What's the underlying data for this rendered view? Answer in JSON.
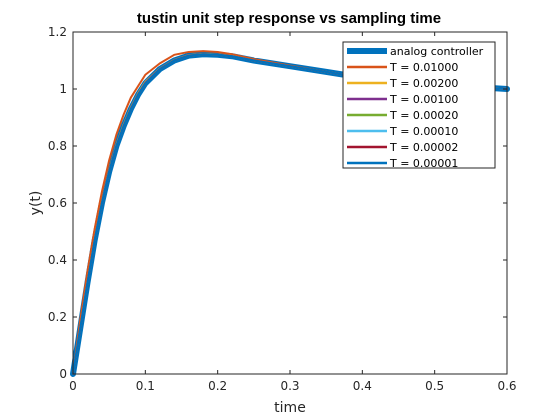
{
  "chart_data": {
    "type": "line",
    "title": "tustin unit step response vs sampling time",
    "xlabel": "time",
    "ylabel": "y(t)",
    "xlim": [
      0,
      0.6
    ],
    "ylim": [
      0,
      1.2
    ],
    "xticks": [
      "0",
      "0.1",
      "0.2",
      "0.3",
      "0.4",
      "0.5",
      "0.6"
    ],
    "yticks": [
      "0",
      "0.2",
      "0.4",
      "0.6",
      "0.8",
      "1",
      "1.2"
    ],
    "grid": false,
    "legend_position": "top-right",
    "x": [
      0,
      0.01,
      0.02,
      0.03,
      0.04,
      0.05,
      0.06,
      0.07,
      0.08,
      0.09,
      0.1,
      0.12,
      0.14,
      0.16,
      0.18,
      0.2,
      0.22,
      0.25,
      0.3,
      0.35,
      0.4,
      0.45,
      0.5,
      0.55,
      0.6
    ],
    "series": [
      {
        "name": "analog controller",
        "color": "#0072BD",
        "width": 6,
        "values": [
          0,
          0.16,
          0.32,
          0.47,
          0.6,
          0.71,
          0.8,
          0.87,
          0.93,
          0.98,
          1.02,
          1.07,
          1.1,
          1.117,
          1.122,
          1.12,
          1.115,
          1.1,
          1.08,
          1.06,
          1.04,
          1.025,
          1.015,
          1.008,
          1.0
        ]
      },
      {
        "name": "T = 0.01000",
        "color": "#D95319",
        "width": 2,
        "values": [
          0,
          0.19,
          0.36,
          0.51,
          0.64,
          0.75,
          0.84,
          0.91,
          0.97,
          1.01,
          1.05,
          1.09,
          1.12,
          1.13,
          1.133,
          1.13,
          1.122,
          1.105,
          1.082,
          1.06,
          1.04,
          1.025,
          1.015,
          1.008,
          1.0
        ]
      },
      {
        "name": "T = 0.00200",
        "color": "#EDB120",
        "width": 2,
        "values": [
          0,
          0.165,
          0.325,
          0.475,
          0.605,
          0.715,
          0.805,
          0.875,
          0.935,
          0.985,
          1.025,
          1.072,
          1.102,
          1.119,
          1.123,
          1.121,
          1.116,
          1.1,
          1.08,
          1.06,
          1.04,
          1.025,
          1.015,
          1.008,
          1.0
        ]
      },
      {
        "name": "T = 0.00100",
        "color": "#7E2F8E",
        "width": 2,
        "values": [
          0,
          0.162,
          0.322,
          0.472,
          0.602,
          0.712,
          0.802,
          0.872,
          0.932,
          0.982,
          1.022,
          1.071,
          1.101,
          1.118,
          1.122,
          1.12,
          1.115,
          1.1,
          1.08,
          1.06,
          1.04,
          1.025,
          1.015,
          1.008,
          1.0
        ]
      },
      {
        "name": "T = 0.00020",
        "color": "#77AC30",
        "width": 2,
        "values": [
          0,
          0.16,
          0.32,
          0.47,
          0.6,
          0.71,
          0.8,
          0.87,
          0.93,
          0.98,
          1.02,
          1.07,
          1.1,
          1.117,
          1.122,
          1.12,
          1.115,
          1.1,
          1.08,
          1.06,
          1.04,
          1.025,
          1.015,
          1.008,
          1.0
        ]
      },
      {
        "name": "T = 0.00010",
        "color": "#4DBEEE",
        "width": 2,
        "values": [
          0,
          0.16,
          0.32,
          0.47,
          0.6,
          0.71,
          0.8,
          0.87,
          0.93,
          0.98,
          1.02,
          1.07,
          1.1,
          1.117,
          1.122,
          1.12,
          1.115,
          1.1,
          1.08,
          1.06,
          1.04,
          1.025,
          1.015,
          1.008,
          1.0
        ]
      },
      {
        "name": "T = 0.00002",
        "color": "#A2142F",
        "width": 2,
        "values": [
          0,
          0.16,
          0.32,
          0.47,
          0.6,
          0.71,
          0.8,
          0.87,
          0.93,
          0.98,
          1.02,
          1.07,
          1.1,
          1.117,
          1.122,
          1.12,
          1.115,
          1.1,
          1.08,
          1.06,
          1.04,
          1.025,
          1.015,
          1.008,
          1.0
        ]
      },
      {
        "name": "T = 0.00001",
        "color": "#0072BD",
        "width": 2,
        "values": [
          0,
          0.16,
          0.32,
          0.47,
          0.6,
          0.71,
          0.8,
          0.87,
          0.93,
          0.98,
          1.02,
          1.07,
          1.1,
          1.117,
          1.122,
          1.12,
          1.115,
          1.1,
          1.08,
          1.06,
          1.04,
          1.025,
          1.015,
          1.008,
          1.0
        ]
      }
    ]
  }
}
